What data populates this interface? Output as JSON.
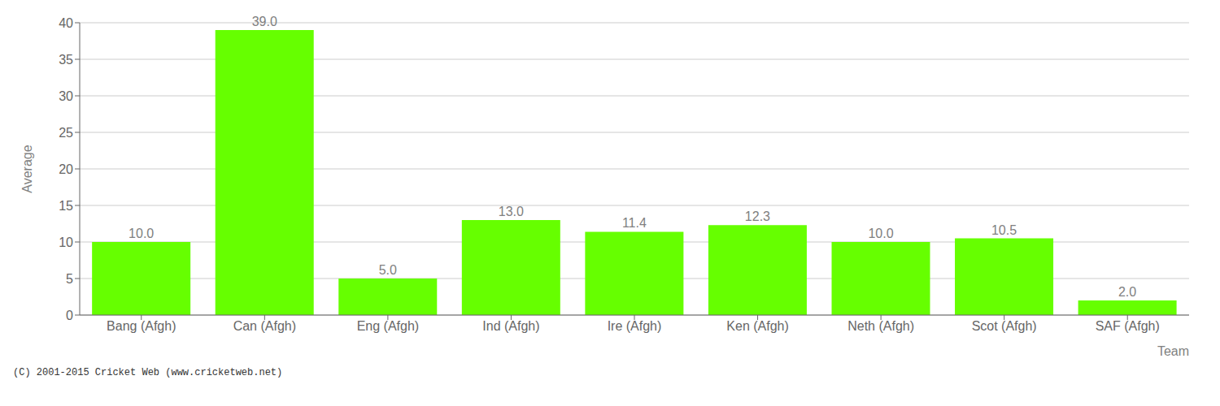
{
  "chart_data": {
    "type": "bar",
    "categories": [
      "Bang (Afgh)",
      "Can (Afgh)",
      "Eng (Afgh)",
      "Ind (Afgh)",
      "Ire (Afgh)",
      "Ken (Afgh)",
      "Neth (Afgh)",
      "Scot (Afgh)",
      "SAF (Afgh)"
    ],
    "values": [
      10.0,
      39.0,
      5.0,
      13.0,
      11.4,
      12.3,
      10.0,
      10.5,
      2.0
    ],
    "value_labels": [
      "10.0",
      "39.0",
      "5.0",
      "13.0",
      "11.4",
      "12.3",
      "10.0",
      "10.5",
      "2.0"
    ],
    "data_labels": true,
    "color": "#66ff00",
    "xlabel": "Team",
    "ylabel": "Average",
    "ylim": [
      0,
      40
    ],
    "yticks": [
      0,
      5,
      10,
      15,
      20,
      25,
      30,
      35,
      40
    ],
    "grid": true,
    "annotations": [
      "(C) 2001-2015 Cricket Web (www.cricketweb.net)"
    ]
  }
}
